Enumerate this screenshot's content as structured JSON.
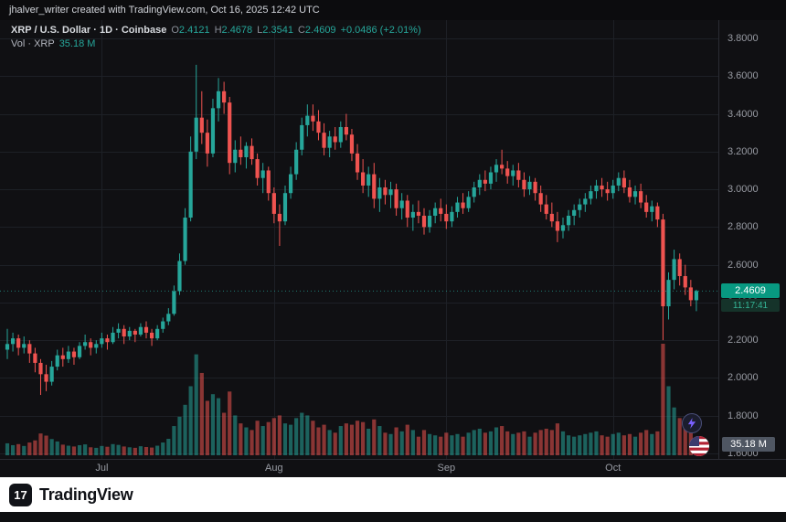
{
  "topbar": {
    "attribution": "jhalver_writer created with TradingView.com, Oct 16, 2025 12:42 UTC"
  },
  "legend": {
    "symbol_title": "XRP / U.S. Dollar · 1D · Coinbase",
    "o_label": "O",
    "o_value": "2.4121",
    "h_label": "H",
    "h_value": "2.4678",
    "l_label": "L",
    "l_value": "2.3541",
    "c_label": "C",
    "c_value": "2.4609",
    "change": "+0.0486 (+2.01%)",
    "vol_label": "Vol · XRP",
    "vol_value": "35.18 M"
  },
  "badges": {
    "last_price": "2.4609",
    "countdown": "11:17:41",
    "volume": "35.18 M"
  },
  "footer": {
    "brand": "TradingView",
    "logo_glyph": "17"
  },
  "icons": {
    "lightning": "⚡",
    "us_flag": "🇺🇸"
  },
  "colors": {
    "background": "#101013",
    "up": "#26a69a",
    "down": "#ef5350",
    "grid": "#1d2026",
    "axis_border": "#2a2c33",
    "axis_text": "#989ba3",
    "price_badge_bg": "#089981",
    "countdown_bg": "#15332a",
    "countdown_text": "#35b597",
    "volume_badge_bg": "#4f5662",
    "bolt": "#7b61ff",
    "flag_red": "#b22234",
    "flag_blue": "#3c3b6e"
  },
  "chart_data": {
    "type": "candlestick",
    "symbol": "XRP/USD",
    "interval": "1D",
    "exchange": "Coinbase",
    "title": "XRP / U.S. Dollar · 1D · Coinbase",
    "price_ticks": [
      3.8,
      3.6,
      3.4,
      3.2,
      3.0,
      2.8,
      2.6,
      2.4,
      2.2,
      2.0,
      1.8,
      1.6
    ],
    "ylim": [
      1.55,
      3.86
    ],
    "last_price": 2.4609,
    "prev_close": 2.4123,
    "volume_unit": "M",
    "months": [
      {
        "label": "Jul",
        "index": 17
      },
      {
        "label": "Aug",
        "index": 48
      },
      {
        "label": "Sep",
        "index": 79
      },
      {
        "label": "Oct",
        "index": 109
      }
    ],
    "candles_format": [
      "open",
      "high",
      "low",
      "close",
      "volume_millions"
    ],
    "candles": [
      [
        2.15,
        2.26,
        2.1,
        2.18,
        45
      ],
      [
        2.18,
        2.24,
        2.14,
        2.21,
        38
      ],
      [
        2.21,
        2.23,
        2.12,
        2.16,
        42
      ],
      [
        2.16,
        2.22,
        2.13,
        2.18,
        35
      ],
      [
        2.18,
        2.2,
        2.08,
        2.13,
        48
      ],
      [
        2.13,
        2.16,
        2.03,
        2.08,
        56
      ],
      [
        2.08,
        2.1,
        1.91,
        2.02,
        82
      ],
      [
        2.02,
        2.07,
        1.93,
        1.98,
        74
      ],
      [
        1.98,
        2.09,
        1.96,
        2.06,
        61
      ],
      [
        2.06,
        2.15,
        2.04,
        2.12,
        52
      ],
      [
        2.12,
        2.16,
        2.06,
        2.1,
        40
      ],
      [
        2.1,
        2.17,
        2.08,
        2.14,
        36
      ],
      [
        2.14,
        2.16,
        2.07,
        2.11,
        33
      ],
      [
        2.11,
        2.19,
        2.1,
        2.17,
        38
      ],
      [
        2.17,
        2.23,
        2.15,
        2.19,
        41
      ],
      [
        2.19,
        2.21,
        2.12,
        2.16,
        30
      ],
      [
        2.16,
        2.2,
        2.13,
        2.18,
        28
      ],
      [
        2.18,
        2.24,
        2.16,
        2.21,
        35
      ],
      [
        2.21,
        2.23,
        2.15,
        2.19,
        32
      ],
      [
        2.19,
        2.27,
        2.18,
        2.24,
        42
      ],
      [
        2.24,
        2.29,
        2.21,
        2.26,
        39
      ],
      [
        2.26,
        2.28,
        2.18,
        2.22,
        33
      ],
      [
        2.22,
        2.27,
        2.2,
        2.25,
        30
      ],
      [
        2.25,
        2.26,
        2.19,
        2.23,
        28
      ],
      [
        2.23,
        2.29,
        2.22,
        2.27,
        34
      ],
      [
        2.27,
        2.3,
        2.21,
        2.24,
        31
      ],
      [
        2.24,
        2.26,
        2.17,
        2.21,
        29
      ],
      [
        2.21,
        2.28,
        2.2,
        2.26,
        36
      ],
      [
        2.26,
        2.32,
        2.24,
        2.3,
        48
      ],
      [
        2.3,
        2.37,
        2.28,
        2.34,
        62
      ],
      [
        2.34,
        2.49,
        2.33,
        2.46,
        110
      ],
      [
        2.46,
        2.66,
        2.44,
        2.62,
        145
      ],
      [
        2.62,
        2.9,
        2.6,
        2.85,
        190
      ],
      [
        2.85,
        3.28,
        2.83,
        3.2,
        260
      ],
      [
        3.2,
        3.66,
        3.16,
        3.38,
        380
      ],
      [
        3.38,
        3.52,
        3.24,
        3.3,
        310
      ],
      [
        3.3,
        3.37,
        3.12,
        3.19,
        205
      ],
      [
        3.19,
        3.48,
        3.17,
        3.43,
        230
      ],
      [
        3.43,
        3.59,
        3.36,
        3.52,
        215
      ],
      [
        3.52,
        3.57,
        3.4,
        3.46,
        160
      ],
      [
        3.46,
        3.49,
        3.08,
        3.14,
        240
      ],
      [
        3.14,
        3.26,
        3.09,
        3.21,
        150
      ],
      [
        3.21,
        3.28,
        3.13,
        3.17,
        120
      ],
      [
        3.17,
        3.25,
        3.11,
        3.23,
        105
      ],
      [
        3.23,
        3.27,
        3.13,
        3.16,
        95
      ],
      [
        3.16,
        3.19,
        3.02,
        3.06,
        130
      ],
      [
        3.06,
        3.14,
        2.98,
        3.1,
        110
      ],
      [
        3.1,
        3.12,
        2.94,
        2.98,
        125
      ],
      [
        2.98,
        3.01,
        2.82,
        2.87,
        140
      ],
      [
        2.87,
        2.92,
        2.7,
        2.83,
        150
      ],
      [
        2.83,
        3.02,
        2.81,
        2.98,
        120
      ],
      [
        2.98,
        3.12,
        2.95,
        3.08,
        115
      ],
      [
        3.08,
        3.25,
        3.05,
        3.21,
        140
      ],
      [
        3.21,
        3.38,
        3.18,
        3.34,
        160
      ],
      [
        3.34,
        3.45,
        3.28,
        3.39,
        150
      ],
      [
        3.39,
        3.45,
        3.31,
        3.36,
        130
      ],
      [
        3.36,
        3.42,
        3.26,
        3.3,
        105
      ],
      [
        3.3,
        3.35,
        3.18,
        3.22,
        115
      ],
      [
        3.22,
        3.31,
        3.17,
        3.28,
        95
      ],
      [
        3.28,
        3.33,
        3.21,
        3.25,
        85
      ],
      [
        3.25,
        3.36,
        3.22,
        3.33,
        110
      ],
      [
        3.33,
        3.4,
        3.26,
        3.29,
        120
      ],
      [
        3.29,
        3.32,
        3.15,
        3.19,
        115
      ],
      [
        3.19,
        3.24,
        3.05,
        3.09,
        130
      ],
      [
        3.09,
        3.16,
        2.98,
        3.02,
        125
      ],
      [
        3.02,
        3.12,
        2.96,
        3.08,
        100
      ],
      [
        3.08,
        3.14,
        2.9,
        2.95,
        135
      ],
      [
        2.95,
        3.06,
        2.88,
        3.01,
        110
      ],
      [
        3.01,
        3.05,
        2.92,
        2.97,
        85
      ],
      [
        2.97,
        3.04,
        2.9,
        3.0,
        80
      ],
      [
        3.0,
        3.03,
        2.86,
        2.9,
        105
      ],
      [
        2.9,
        2.98,
        2.84,
        2.94,
        90
      ],
      [
        2.94,
        2.97,
        2.8,
        2.85,
        115
      ],
      [
        2.85,
        2.92,
        2.78,
        2.88,
        95
      ],
      [
        2.88,
        2.94,
        2.82,
        2.86,
        70
      ],
      [
        2.86,
        2.9,
        2.76,
        2.8,
        95
      ],
      [
        2.8,
        2.89,
        2.77,
        2.86,
        80
      ],
      [
        2.86,
        2.93,
        2.82,
        2.9,
        75
      ],
      [
        2.9,
        2.95,
        2.83,
        2.87,
        70
      ],
      [
        2.87,
        2.92,
        2.79,
        2.83,
        85
      ],
      [
        2.83,
        2.91,
        2.8,
        2.88,
        75
      ],
      [
        2.88,
        2.96,
        2.85,
        2.93,
        80
      ],
      [
        2.93,
        2.98,
        2.87,
        2.9,
        70
      ],
      [
        2.9,
        2.99,
        2.88,
        2.96,
        85
      ],
      [
        2.96,
        3.04,
        2.93,
        3.01,
        95
      ],
      [
        3.01,
        3.08,
        2.97,
        3.05,
        100
      ],
      [
        3.05,
        3.1,
        2.99,
        3.03,
        85
      ],
      [
        3.03,
        3.12,
        3.0,
        3.09,
        90
      ],
      [
        3.09,
        3.16,
        3.04,
        3.13,
        105
      ],
      [
        3.13,
        3.21,
        3.08,
        3.11,
        110
      ],
      [
        3.11,
        3.15,
        3.03,
        3.07,
        90
      ],
      [
        3.07,
        3.13,
        3.02,
        3.1,
        80
      ],
      [
        3.1,
        3.14,
        3.01,
        3.05,
        85
      ],
      [
        3.05,
        3.09,
        2.96,
        3.0,
        90
      ],
      [
        3.0,
        3.07,
        2.97,
        3.04,
        70
      ],
      [
        3.04,
        3.06,
        2.94,
        2.98,
        85
      ],
      [
        2.98,
        3.02,
        2.88,
        2.92,
        95
      ],
      [
        2.92,
        2.97,
        2.84,
        2.87,
        100
      ],
      [
        2.87,
        2.93,
        2.8,
        2.83,
        95
      ],
      [
        2.83,
        2.88,
        2.72,
        2.78,
        120
      ],
      [
        2.78,
        2.85,
        2.74,
        2.81,
        90
      ],
      [
        2.81,
        2.89,
        2.78,
        2.86,
        75
      ],
      [
        2.86,
        2.92,
        2.81,
        2.89,
        70
      ],
      [
        2.89,
        2.95,
        2.85,
        2.92,
        75
      ],
      [
        2.92,
        2.98,
        2.88,
        2.95,
        80
      ],
      [
        2.95,
        3.02,
        2.92,
        2.99,
        85
      ],
      [
        2.99,
        3.05,
        2.95,
        3.02,
        90
      ],
      [
        3.02,
        3.06,
        2.96,
        3.0,
        75
      ],
      [
        3.0,
        3.04,
        2.94,
        2.98,
        70
      ],
      [
        2.98,
        3.05,
        2.95,
        3.02,
        80
      ],
      [
        3.02,
        3.09,
        2.99,
        3.06,
        85
      ],
      [
        3.06,
        3.1,
        2.98,
        3.01,
        75
      ],
      [
        3.01,
        3.05,
        2.93,
        2.96,
        80
      ],
      [
        2.96,
        3.02,
        2.92,
        2.99,
        70
      ],
      [
        2.99,
        3.03,
        2.9,
        2.93,
        85
      ],
      [
        2.93,
        2.97,
        2.85,
        2.88,
        95
      ],
      [
        2.88,
        2.94,
        2.83,
        2.91,
        80
      ],
      [
        2.91,
        2.93,
        2.8,
        2.84,
        90
      ],
      [
        2.84,
        2.87,
        2.2,
        2.38,
        420
      ],
      [
        2.38,
        2.56,
        2.31,
        2.52,
        260
      ],
      [
        2.52,
        2.68,
        2.47,
        2.63,
        180
      ],
      [
        2.63,
        2.66,
        2.49,
        2.54,
        140
      ],
      [
        2.54,
        2.6,
        2.44,
        2.48,
        110
      ],
      [
        2.48,
        2.52,
        2.38,
        2.4123,
        90
      ],
      [
        2.4121,
        2.4678,
        2.3541,
        2.4609,
        35.18
      ]
    ]
  }
}
